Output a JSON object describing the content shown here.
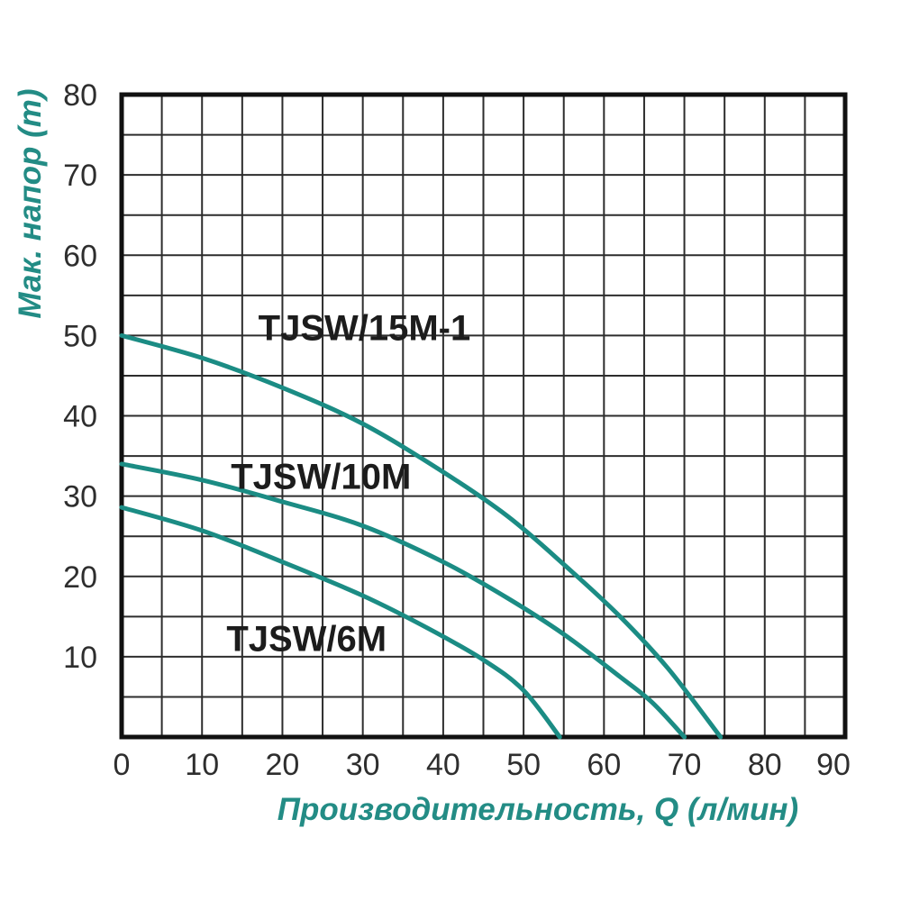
{
  "chart_data": {
    "type": "line",
    "title": "",
    "xlabel": "Производительность, Q (л/мин)",
    "ylabel": "Мак. напор (m)",
    "xlim": [
      0,
      90
    ],
    "ylim": [
      0,
      80
    ],
    "x_ticks": [
      0,
      10,
      20,
      30,
      40,
      50,
      60,
      70,
      80,
      90
    ],
    "y_ticks": [
      10,
      20,
      30,
      40,
      50,
      60,
      70,
      80
    ],
    "grid": true,
    "grid_step": 5,
    "legend_position": "inline-labels",
    "series": [
      {
        "name": "TJSW/15M-1",
        "label_pos": [
          30.2,
          51.0
        ],
        "points": [
          [
            0,
            50
          ],
          [
            10,
            47.2
          ],
          [
            20,
            43.5
          ],
          [
            30,
            39
          ],
          [
            40,
            33
          ],
          [
            48,
            27.5
          ],
          [
            55,
            21.5
          ],
          [
            62,
            15
          ],
          [
            68,
            8.5
          ],
          [
            74.5,
            0
          ]
        ]
      },
      {
        "name": "TJSW/10M",
        "label_pos": [
          24.8,
          32.5
        ],
        "points": [
          [
            0,
            34
          ],
          [
            10,
            32
          ],
          [
            20,
            29.3
          ],
          [
            30,
            26.3
          ],
          [
            40,
            21.8
          ],
          [
            48,
            17.3
          ],
          [
            55,
            12.8
          ],
          [
            62,
            7.5
          ],
          [
            66,
            4.3
          ],
          [
            70,
            0
          ]
        ]
      },
      {
        "name": "TJSW/6M",
        "label_pos": [
          23.0,
          12.3
        ],
        "points": [
          [
            0,
            28.6
          ],
          [
            10,
            25.7
          ],
          [
            20,
            21.8
          ],
          [
            30,
            17.6
          ],
          [
            38,
            13.6
          ],
          [
            45,
            9.6
          ],
          [
            50,
            5.8
          ],
          [
            54.5,
            0
          ]
        ]
      }
    ],
    "colors": {
      "curve": "#1b8c84",
      "axis_text": "#238c85",
      "tick_text": "#2e2e2e",
      "grid": "#2d2d2d",
      "border": "#111111",
      "series_label": "#1c1c1c",
      "background": "#ffffff"
    }
  }
}
